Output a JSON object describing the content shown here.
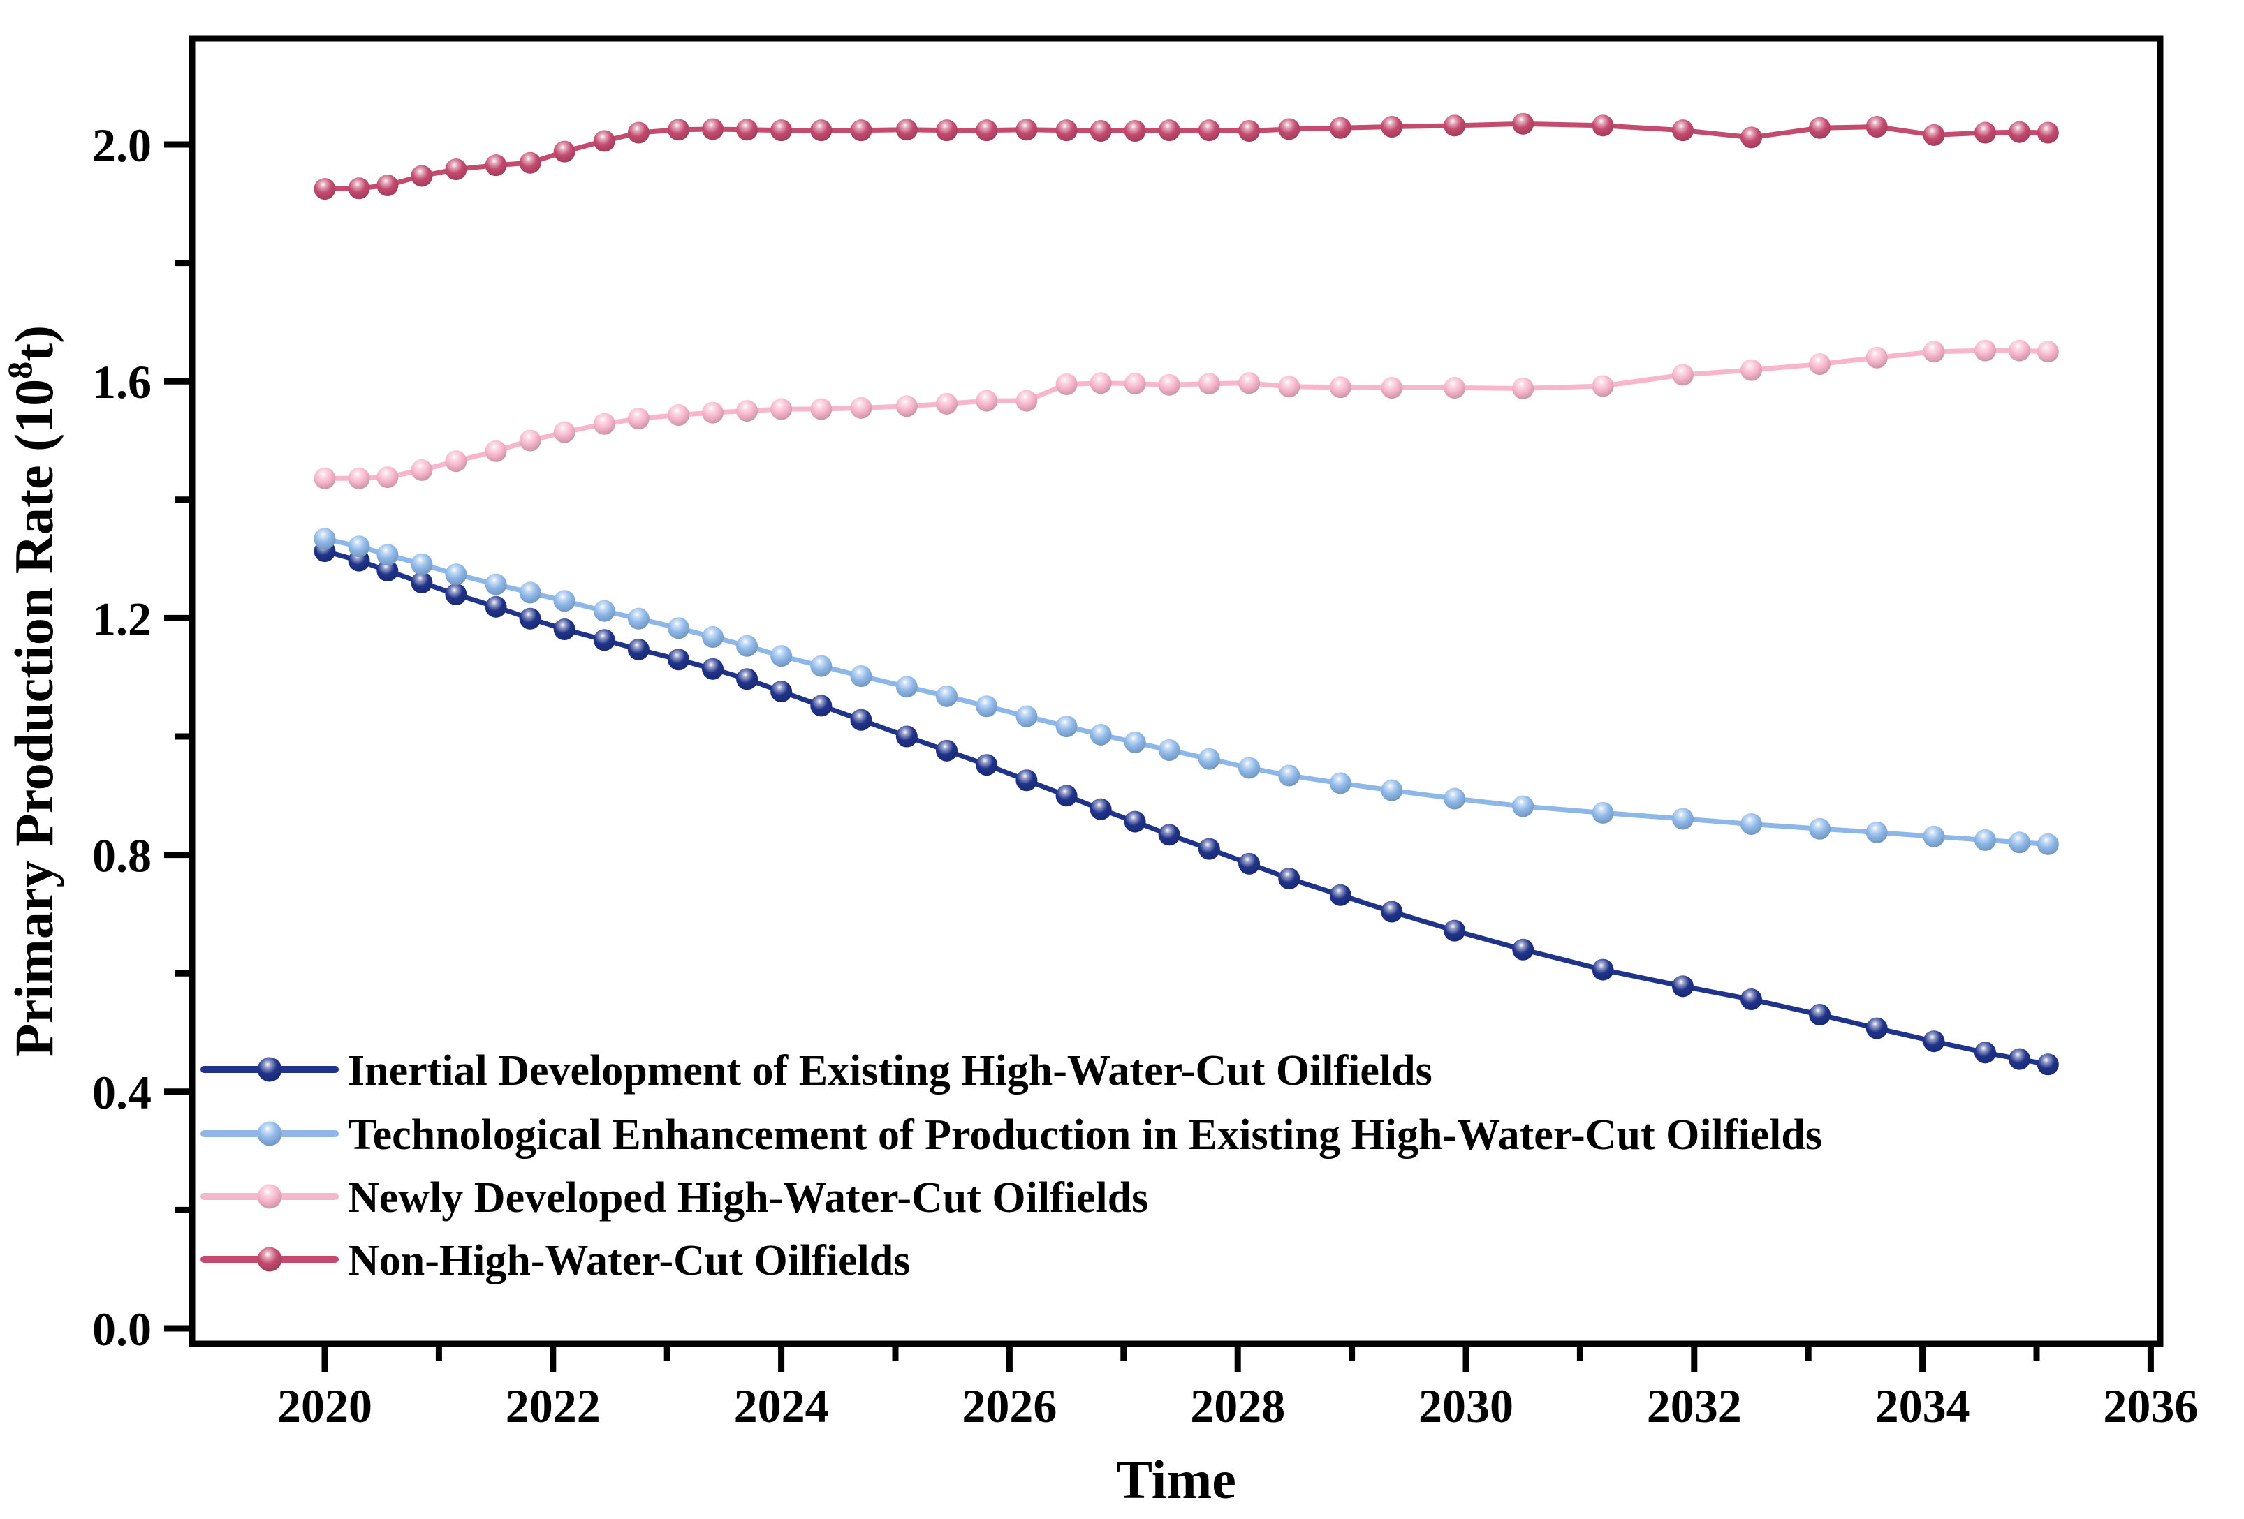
{
  "chart_data": {
    "type": "line",
    "title": "",
    "xlabel": "Time",
    "ylabel": "Primary Production Rate (10⁸t)",
    "ylabel_parts": {
      "prefix": "Primary Production Rate (10",
      "sup": "8",
      "suffix": "t)"
    },
    "xlim": [
      2018.95,
      2036.1
    ],
    "ylim": [
      0.0,
      2.2
    ],
    "grid": false,
    "legend_position": "lower-left",
    "xticks_major": {
      "values": [
        2020,
        2022,
        2024,
        2026,
        2028,
        2030,
        2032,
        2034,
        2036
      ],
      "labels": [
        "2020",
        "2022",
        "2024",
        "2026",
        "2028",
        "2030",
        "2032",
        "2034",
        "2036"
      ]
    },
    "xticks_minor": [
      2021,
      2023,
      2025,
      2027,
      2029,
      2031,
      2033,
      2035
    ],
    "yticks_major": {
      "values": [
        0.0,
        0.4,
        0.8,
        1.2,
        1.6,
        2.0
      ],
      "labels": [
        "0.0",
        "0.4",
        "0.8",
        "1.2",
        "1.6",
        "2.0"
      ]
    },
    "yticks_minor": [
      0.2,
      0.6,
      1.0,
      1.4,
      1.8
    ],
    "x": [
      2020.0,
      2020.3,
      2020.55,
      2020.85,
      2021.15,
      2021.5,
      2021.8,
      2022.1,
      2022.45,
      2022.75,
      2023.1,
      2023.4,
      2023.7,
      2024.0,
      2024.35,
      2024.7,
      2025.1,
      2025.45,
      2025.8,
      2026.15,
      2026.5,
      2026.8,
      2027.1,
      2027.4,
      2027.75,
      2028.1,
      2028.45,
      2028.9,
      2029.35,
      2029.9,
      2030.5,
      2031.2,
      2031.9,
      2032.5,
      2033.1,
      2033.6,
      2034.1,
      2034.55,
      2034.85,
      2035.1
    ],
    "series": [
      {
        "name": "Non-High-Water-Cut Oilfields",
        "color": "#c44a6e",
        "values": [
          1.925,
          1.926,
          1.931,
          1.947,
          1.958,
          1.965,
          1.969,
          1.988,
          2.006,
          2.02,
          2.025,
          2.026,
          2.025,
          2.024,
          2.024,
          2.024,
          2.025,
          2.024,
          2.024,
          2.025,
          2.024,
          2.023,
          2.023,
          2.024,
          2.024,
          2.023,
          2.026,
          2.028,
          2.03,
          2.032,
          2.035,
          2.032,
          2.024,
          2.012,
          2.028,
          2.03,
          2.016,
          2.02,
          2.021,
          2.02
        ]
      },
      {
        "name": "Newly Developed High-Water-Cut Oilfields",
        "color": "#f7b6cc",
        "values": [
          1.436,
          1.436,
          1.438,
          1.45,
          1.465,
          1.482,
          1.5,
          1.514,
          1.528,
          1.537,
          1.543,
          1.547,
          1.55,
          1.553,
          1.553,
          1.555,
          1.558,
          1.562,
          1.567,
          1.567,
          1.595,
          1.597,
          1.596,
          1.594,
          1.596,
          1.597,
          1.591,
          1.59,
          1.589,
          1.589,
          1.588,
          1.592,
          1.611,
          1.619,
          1.629,
          1.64,
          1.65,
          1.652,
          1.652,
          1.65
        ]
      },
      {
        "name": "Inertial Development of Existing High-Water-Cut Oilfields",
        "color": "#20338a",
        "values": [
          1.313,
          1.297,
          1.28,
          1.26,
          1.24,
          1.219,
          1.199,
          1.181,
          1.163,
          1.147,
          1.13,
          1.114,
          1.097,
          1.076,
          1.052,
          1.028,
          1.0,
          0.976,
          0.952,
          0.926,
          0.9,
          0.877,
          0.856,
          0.834,
          0.81,
          0.785,
          0.76,
          0.732,
          0.704,
          0.672,
          0.64,
          0.606,
          0.578,
          0.556,
          0.53,
          0.507,
          0.485,
          0.466,
          0.455,
          0.446
        ]
      },
      {
        "name": "Technological Enhancement of Production in Existing High-Water-Cut Oilfields",
        "color": "#8db7e8",
        "values": [
          1.334,
          1.321,
          1.307,
          1.291,
          1.274,
          1.257,
          1.243,
          1.229,
          1.212,
          1.199,
          1.183,
          1.168,
          1.153,
          1.136,
          1.119,
          1.102,
          1.084,
          1.068,
          1.051,
          1.034,
          1.017,
          1.003,
          0.99,
          0.977,
          0.962,
          0.947,
          0.934,
          0.921,
          0.909,
          0.895,
          0.882,
          0.871,
          0.861,
          0.852,
          0.844,
          0.838,
          0.831,
          0.825,
          0.821,
          0.818
        ]
      }
    ],
    "legend_order": [
      "Inertial Development of Existing High-Water-Cut Oilfields",
      "Technological Enhancement of Production in Existing High-Water-Cut Oilfields",
      "Newly Developed High-Water-Cut Oilfields",
      "Non-High-Water-Cut Oilfields"
    ]
  }
}
